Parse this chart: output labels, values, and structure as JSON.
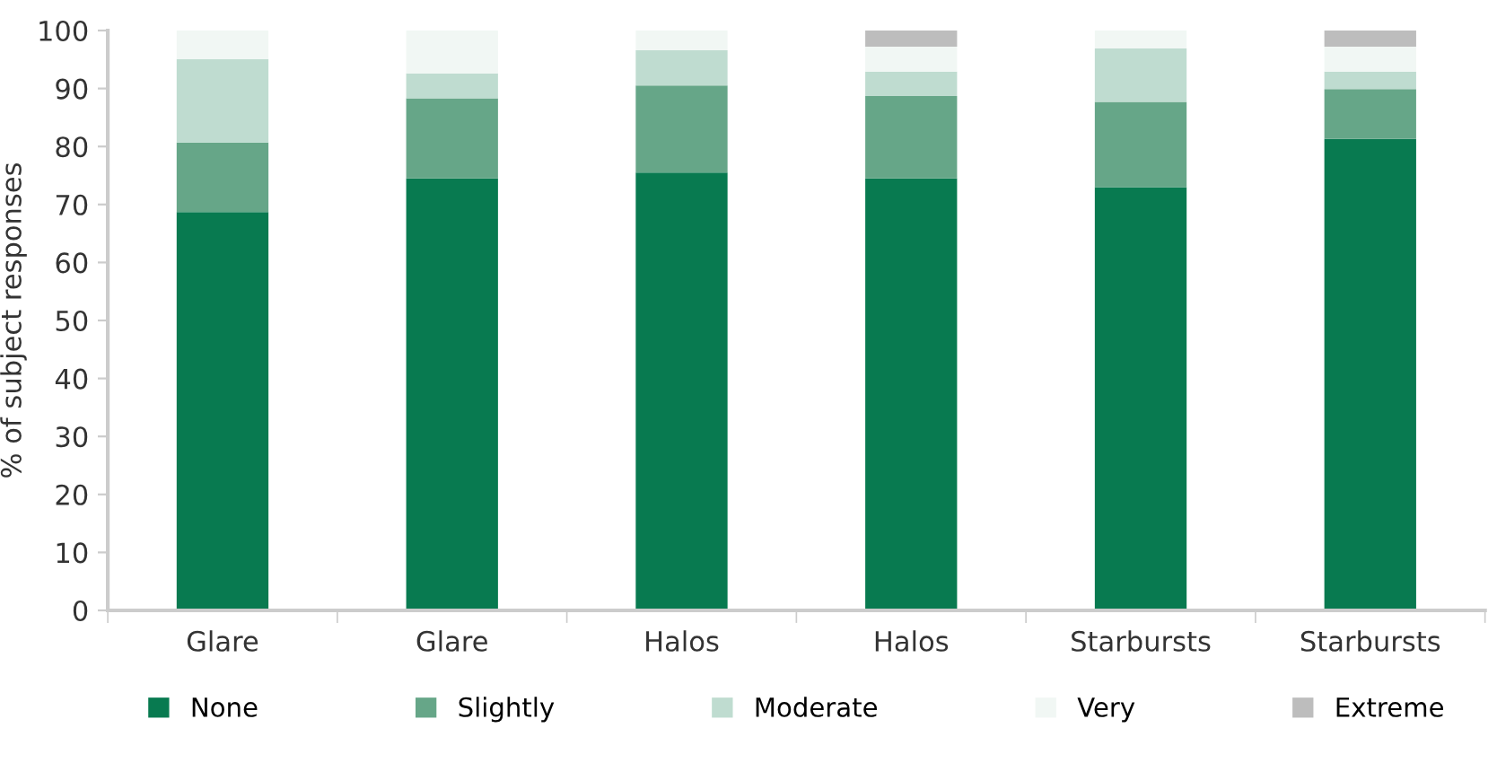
{
  "chart_data": {
    "type": "bar",
    "stacked": true,
    "ylabel": "% of subject responses",
    "categories": [
      "Glare",
      "Glare",
      "Halos",
      "Halos",
      "Starbursts",
      "Starbursts"
    ],
    "series": [
      {
        "name": "None",
        "color": "#087a50",
        "values": [
          68.7,
          74.5,
          75.5,
          74.5,
          73.0,
          81.3
        ]
      },
      {
        "name": "Slightly",
        "color": "#66a688",
        "values": [
          12.0,
          13.8,
          15.0,
          14.2,
          14.7,
          8.6
        ]
      },
      {
        "name": "Moderate",
        "color": "#bfdcd0",
        "values": [
          14.4,
          4.3,
          6.1,
          4.2,
          9.2,
          3.0
        ]
      },
      {
        "name": "Very",
        "color": "#f1f7f4",
        "values": [
          4.9,
          7.4,
          3.4,
          4.3,
          3.1,
          4.3
        ]
      },
      {
        "name": "Extreme",
        "color": "#bdbdbd",
        "values": [
          0,
          0,
          0,
          2.8,
          0,
          2.8
        ]
      }
    ],
    "ylim": [
      0,
      100
    ],
    "yticks": [
      0,
      10,
      20,
      30,
      40,
      50,
      60,
      70,
      80,
      90,
      100
    ],
    "legend": "bottom",
    "grid": false
  }
}
